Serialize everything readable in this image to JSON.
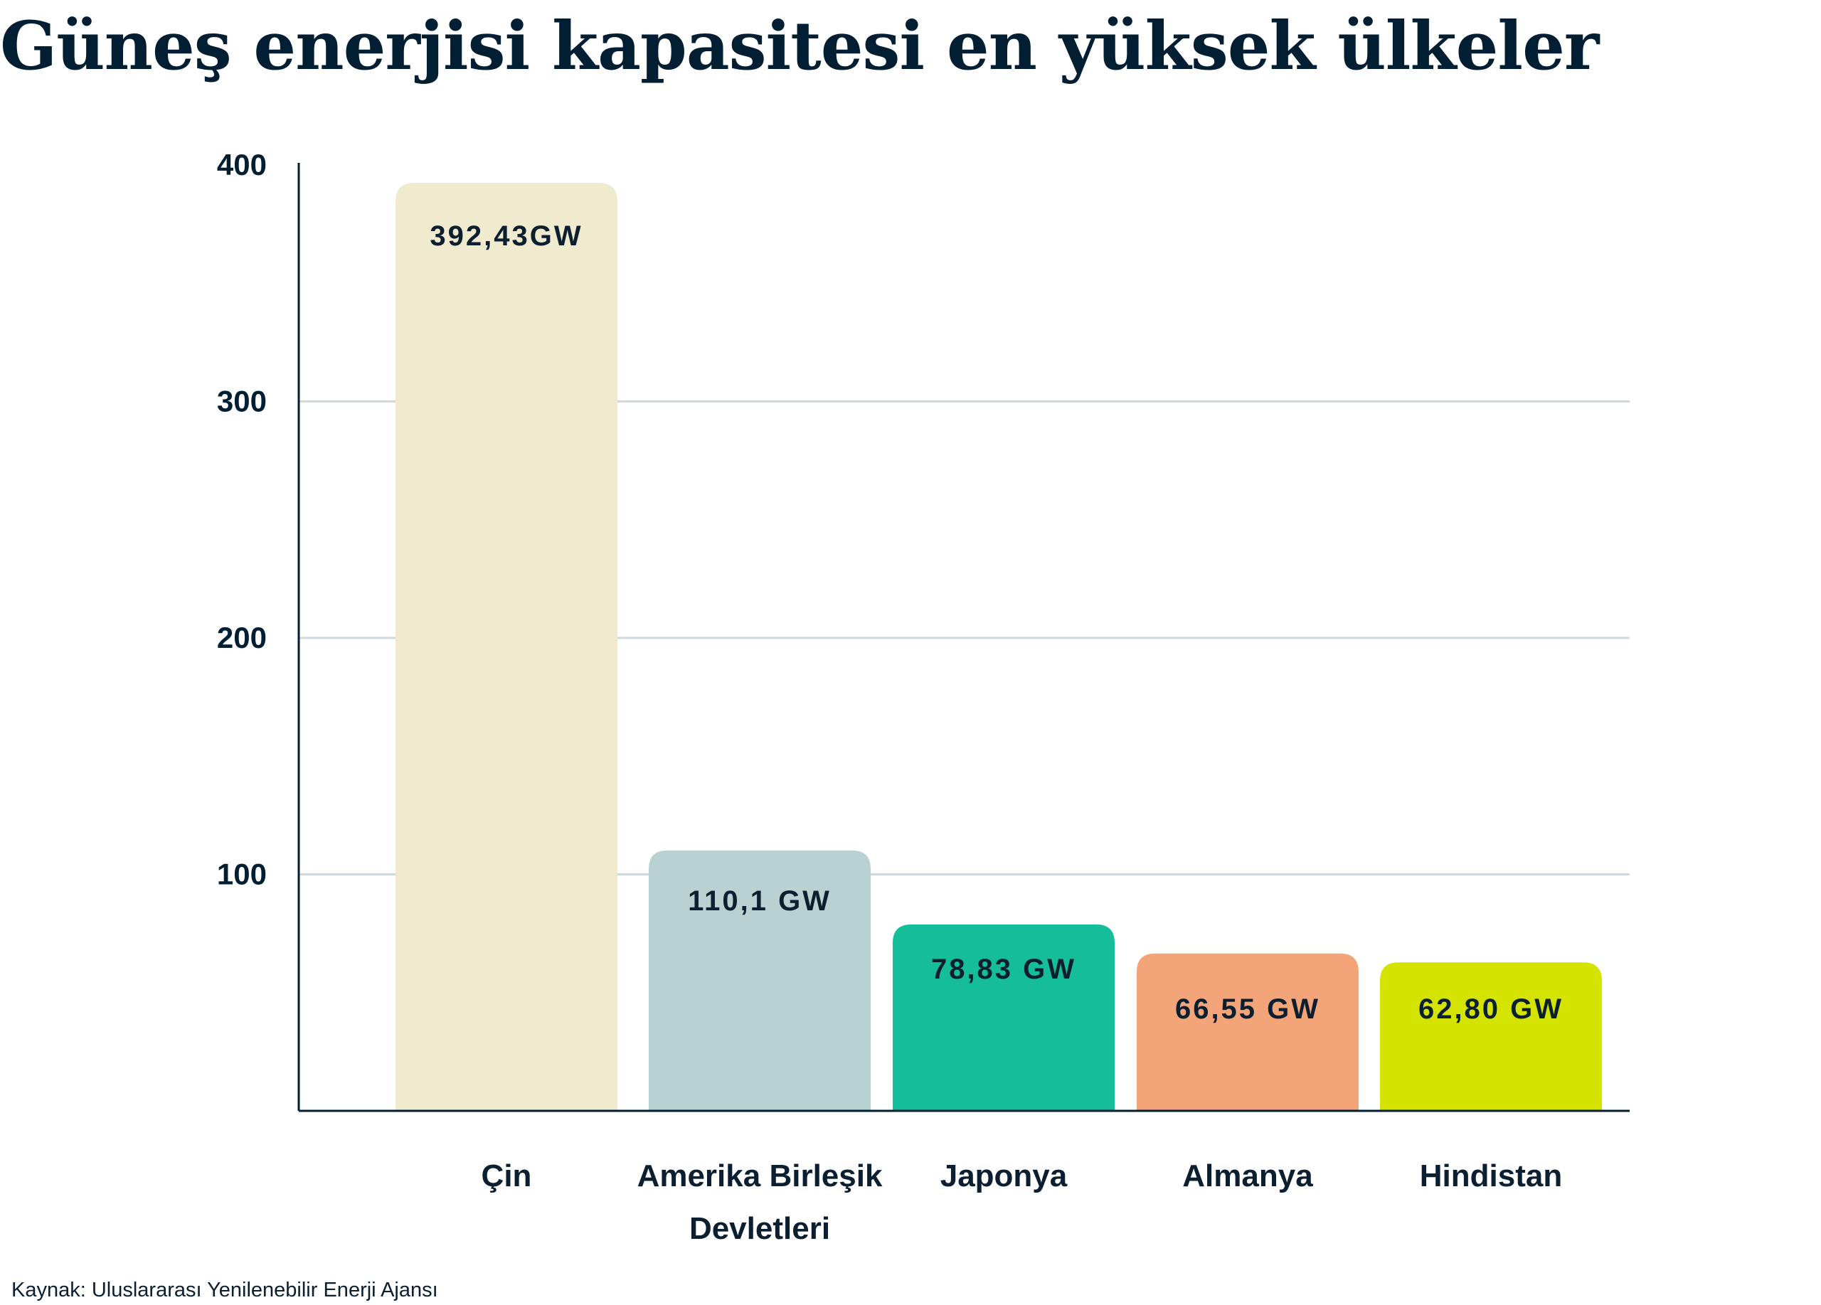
{
  "title": "Güneş enerjisi kapasitesi en yüksek ülkeler",
  "source": "Kaynak: Uluslararası Yenilenebilir Enerji Ajansı",
  "chart_data": {
    "type": "bar",
    "title": "Güneş enerjisi kapasitesi en yüksek ülkeler",
    "xlabel": "",
    "ylabel": "",
    "ylim": [
      0,
      400
    ],
    "yticks": [
      100,
      200,
      300,
      400
    ],
    "grid": true,
    "categories": [
      [
        "Çin"
      ],
      [
        "Amerika Birleşik",
        "Devletleri"
      ],
      [
        "Japonya"
      ],
      [
        "Almanya"
      ],
      [
        "Hindistan"
      ]
    ],
    "values": [
      392.43,
      110.1,
      78.83,
      66.55,
      62.8
    ],
    "data_labels": [
      "392,43GW",
      "110,1 GW",
      "78,83 GW",
      "66,55 GW",
      "62,80 GW"
    ],
    "colors": [
      "#f0eace",
      "#b7d2d1",
      "#16bd9b",
      "#f3a478",
      "#d5e300"
    ],
    "axis_color": "#021e32",
    "grid_color": "#cfd8dc"
  }
}
